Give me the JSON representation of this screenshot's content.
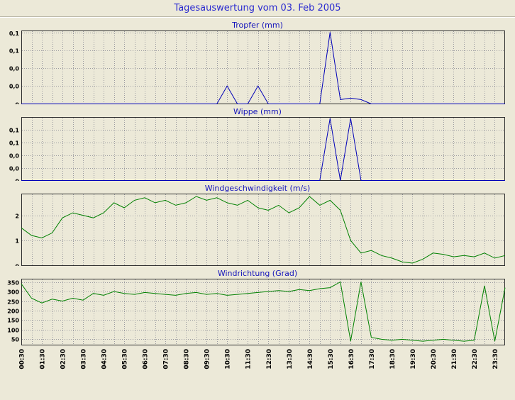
{
  "page": {
    "title": "Tagesauswertung vom 03. Feb 2005",
    "background": "#ece9d8",
    "plot_background": "#ece9d8",
    "title_color": "#2a2ad0",
    "chart_title_color": "#1414bb",
    "grid_color": "#9a9aa0",
    "border_color": "#2f2f2f",
    "axis_text_color": "#000000"
  },
  "x_labels": [
    "00:30",
    "01:30",
    "02:30",
    "03:30",
    "04:30",
    "05:30",
    "06:30",
    "07:30",
    "08:30",
    "09:30",
    "10:30",
    "11:30",
    "12:30",
    "13:30",
    "14:30",
    "15:30",
    "16:30",
    "17:30",
    "18:30",
    "19:30",
    "20:30",
    "21:30",
    "22:30",
    "23:30"
  ],
  "chart_data": [
    {
      "type": "line",
      "title": "Tropfer (mm)",
      "color": "#0000b8",
      "ylim": [
        0,
        0.102
      ],
      "x_start": 0.5,
      "x_step": 0.5,
      "x_unit": "hour-of-day",
      "yticks": [
        {
          "v": 0,
          "label": "0"
        },
        {
          "v": 0.025,
          "label": "0,0"
        },
        {
          "v": 0.05,
          "label": "0,0"
        },
        {
          "v": 0.075,
          "label": "0,1"
        },
        {
          "v": 0.1,
          "label": "0,1"
        }
      ],
      "values": [
        0,
        0,
        0,
        0,
        0,
        0,
        0,
        0,
        0,
        0,
        0,
        0,
        0,
        0,
        0,
        0,
        0,
        0,
        0,
        0,
        0.025,
        0,
        0,
        0.025,
        0,
        0,
        0,
        0,
        0,
        0,
        0.1,
        0.006,
        0.008,
        0.006,
        0,
        0,
        0,
        0,
        0,
        0,
        0,
        0,
        0,
        0,
        0,
        0,
        0,
        0
      ]
    },
    {
      "type": "line",
      "title": "Wippe (mm)",
      "color": "#0000b8",
      "ylim": [
        0,
        0.125
      ],
      "x_start": 0.5,
      "x_step": 0.5,
      "x_unit": "hour-of-day",
      "yticks": [
        {
          "v": 0,
          "label": "0"
        },
        {
          "v": 0.025,
          "label": "0,0"
        },
        {
          "v": 0.05,
          "label": "0,0"
        },
        {
          "v": 0.075,
          "label": "0,1"
        },
        {
          "v": 0.1,
          "label": "0,1"
        }
      ],
      "values": [
        0,
        0,
        0,
        0,
        0,
        0,
        0,
        0,
        0,
        0,
        0,
        0,
        0,
        0,
        0,
        0,
        0,
        0,
        0,
        0,
        0,
        0,
        0,
        0,
        0,
        0,
        0,
        0,
        0,
        0,
        0.123,
        0,
        0.123,
        0,
        0,
        0,
        0,
        0,
        0,
        0,
        0,
        0,
        0,
        0,
        0,
        0,
        0,
        0
      ]
    },
    {
      "type": "line",
      "title": "Windgeschwindigkeit (m/s)",
      "color": "#008000",
      "ylim": [
        0,
        2.85
      ],
      "x_start": 0.5,
      "x_step": 0.5,
      "x_unit": "hour-of-day",
      "yticks": [
        {
          "v": 0,
          "label": "0"
        },
        {
          "v": 1,
          "label": "1"
        },
        {
          "v": 2,
          "label": "2"
        }
      ],
      "values": [
        1.5,
        1.2,
        1.1,
        1.3,
        1.9,
        2.1,
        2.0,
        1.9,
        2.1,
        2.5,
        2.3,
        2.6,
        2.7,
        2.5,
        2.6,
        2.4,
        2.5,
        2.75,
        2.6,
        2.7,
        2.5,
        2.4,
        2.6,
        2.3,
        2.2,
        2.4,
        2.1,
        2.3,
        2.75,
        2.4,
        2.6,
        2.2,
        1.0,
        0.5,
        0.6,
        0.4,
        0.3,
        0.15,
        0.1,
        0.25,
        0.5,
        0.45,
        0.35,
        0.4,
        0.35,
        0.5,
        0.3,
        0.4
      ]
    },
    {
      "type": "line",
      "title": "Windrichtung (Grad)",
      "color": "#008000",
      "ylim": [
        20,
        365
      ],
      "x_start": 0.5,
      "x_step": 0.5,
      "x_unit": "hour-of-day",
      "yticks": [
        {
          "v": 50,
          "label": "50"
        },
        {
          "v": 100,
          "label": "100"
        },
        {
          "v": 150,
          "label": "150"
        },
        {
          "v": 200,
          "label": "200"
        },
        {
          "v": 250,
          "label": "250"
        },
        {
          "v": 300,
          "label": "300"
        },
        {
          "v": 350,
          "label": "350"
        }
      ],
      "values": [
        340,
        265,
        240,
        260,
        250,
        265,
        255,
        290,
        280,
        300,
        290,
        285,
        295,
        290,
        285,
        280,
        290,
        295,
        285,
        290,
        280,
        285,
        290,
        295,
        300,
        305,
        300,
        310,
        305,
        315,
        320,
        350,
        40,
        350,
        60,
        50,
        45,
        50,
        45,
        40,
        45,
        50,
        45,
        40,
        45,
        330,
        40,
        320
      ]
    }
  ]
}
